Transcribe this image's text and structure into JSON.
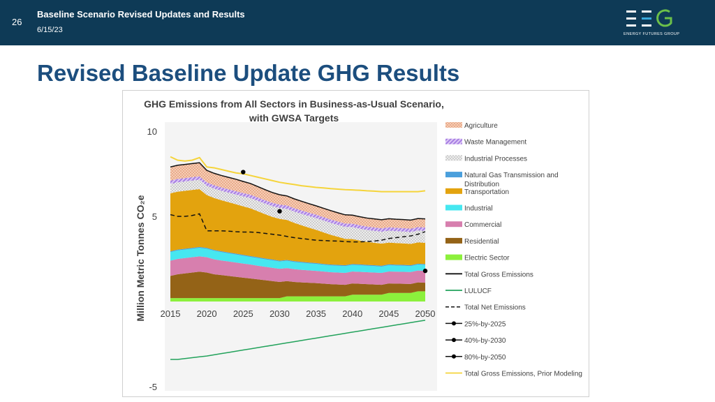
{
  "header": {
    "slide_number": "26",
    "deck_title": "Baseline Scenario Revised Updates and Results",
    "date": "6/15/23",
    "logo_tagline": "ENERGY FUTURES GROUP"
  },
  "slide": {
    "title": "Revised Baseline Update GHG Results"
  },
  "colors": {
    "header_bg": "#0e3a56",
    "title": "#1c4e7e",
    "agriculture": "#f2bfa3",
    "waste": "#c9a7ec",
    "industrial_processes": "#d6d6d6",
    "natural_gas": "#4a9fdc",
    "transportation": "#e3a30e",
    "industrial": "#46e7f0",
    "commercial": "#d77fae",
    "residential": "#946317",
    "electric": "#8cf03c",
    "lulucf": "#22a25b",
    "prior": "#f5d43a"
  },
  "chart_data": {
    "type": "area",
    "title": "GHG Emissions from All Sectors in Business-as-Usual Scenario,",
    "subtitle": "with GWSA Targets",
    "ylabel": "Million Metric Tonnes CO₂e",
    "xlabel": "",
    "xlim": [
      2015,
      2050
    ],
    "ylim": [
      -5,
      10
    ],
    "x_ticks": [
      "2015",
      "2020",
      "2025",
      "2030",
      "2035",
      "2040",
      "2045",
      "2050"
    ],
    "y_ticks": [
      "10",
      "5",
      "-5"
    ],
    "legend_position": "right",
    "x": [
      2015,
      2016,
      2017,
      2018,
      2019,
      2020,
      2021,
      2022,
      2023,
      2024,
      2025,
      2026,
      2027,
      2028,
      2029,
      2030,
      2031,
      2032,
      2033,
      2034,
      2035,
      2036,
      2037,
      2038,
      2039,
      2040,
      2041,
      2042,
      2043,
      2044,
      2045,
      2046,
      2047,
      2048,
      2049,
      2050
    ],
    "stacked_series": [
      {
        "name": "Electric Sector",
        "key": "electric",
        "values": [
          0.2,
          0.2,
          0.2,
          0.2,
          0.2,
          0.2,
          0.2,
          0.2,
          0.2,
          0.2,
          0.2,
          0.2,
          0.2,
          0.2,
          0.2,
          0.2,
          0.3,
          0.3,
          0.3,
          0.3,
          0.3,
          0.3,
          0.3,
          0.3,
          0.3,
          0.4,
          0.4,
          0.4,
          0.4,
          0.4,
          0.5,
          0.5,
          0.5,
          0.5,
          0.6,
          0.6
        ]
      },
      {
        "name": "Residential",
        "key": "residential",
        "values": [
          1.3,
          1.4,
          1.45,
          1.5,
          1.55,
          1.5,
          1.4,
          1.35,
          1.3,
          1.25,
          1.2,
          1.15,
          1.1,
          1.05,
          1.0,
          0.95,
          0.9,
          0.85,
          0.82,
          0.8,
          0.78,
          0.75,
          0.72,
          0.7,
          0.68,
          0.66,
          0.64,
          0.62,
          0.6,
          0.58,
          0.56,
          0.55,
          0.54,
          0.53,
          0.52,
          0.5
        ]
      },
      {
        "name": "Commercial",
        "key": "commercial",
        "values": [
          0.9,
          0.9,
          0.9,
          0.9,
          0.9,
          0.9,
          0.88,
          0.86,
          0.85,
          0.84,
          0.83,
          0.82,
          0.8,
          0.79,
          0.78,
          0.77,
          0.76,
          0.75,
          0.74,
          0.73,
          0.72,
          0.71,
          0.7,
          0.7,
          0.7,
          0.7,
          0.7,
          0.7,
          0.7,
          0.7,
          0.7,
          0.7,
          0.7,
          0.7,
          0.7,
          0.7
        ]
      },
      {
        "name": "Industrial",
        "key": "industrial",
        "values": [
          0.5,
          0.5,
          0.5,
          0.5,
          0.5,
          0.5,
          0.5,
          0.49,
          0.48,
          0.47,
          0.46,
          0.45,
          0.45,
          0.44,
          0.44,
          0.43,
          0.43,
          0.42,
          0.42,
          0.41,
          0.41,
          0.4,
          0.4,
          0.4,
          0.4,
          0.39,
          0.39,
          0.38,
          0.38,
          0.37,
          0.37,
          0.36,
          0.36,
          0.35,
          0.35,
          0.35
        ]
      },
      {
        "name": "Natural Gas Transmission and Distribution",
        "key": "natural_gas",
        "values": [
          0.05,
          0.05,
          0.05,
          0.05,
          0.05,
          0.05,
          0.05,
          0.05,
          0.05,
          0.05,
          0.05,
          0.05,
          0.05,
          0.05,
          0.05,
          0.05,
          0.05,
          0.05,
          0.05,
          0.05,
          0.05,
          0.05,
          0.05,
          0.05,
          0.05,
          0.05,
          0.05,
          0.05,
          0.05,
          0.05,
          0.05,
          0.05,
          0.05,
          0.05,
          0.05,
          0.05
        ]
      },
      {
        "name": "Transportation",
        "key": "transportation",
        "values": [
          3.4,
          3.4,
          3.4,
          3.4,
          3.4,
          3.1,
          3.05,
          3.0,
          2.95,
          2.9,
          2.85,
          2.8,
          2.7,
          2.6,
          2.5,
          2.45,
          2.35,
          2.25,
          2.15,
          2.05,
          1.95,
          1.85,
          1.75,
          1.65,
          1.55,
          1.47,
          1.4,
          1.35,
          1.32,
          1.3,
          1.28,
          1.27,
          1.26,
          1.25,
          1.25,
          1.25
        ]
      },
      {
        "name": "Industrial Processes",
        "key": "industrial_processes",
        "values": [
          0.55,
          0.55,
          0.55,
          0.55,
          0.55,
          0.55,
          0.55,
          0.55,
          0.56,
          0.57,
          0.58,
          0.6,
          0.61,
          0.62,
          0.63,
          0.64,
          0.65,
          0.66,
          0.67,
          0.68,
          0.69,
          0.7,
          0.7,
          0.7,
          0.7,
          0.7,
          0.7,
          0.7,
          0.7,
          0.7,
          0.7,
          0.7,
          0.7,
          0.7,
          0.7,
          0.7
        ]
      },
      {
        "name": "Waste Management",
        "key": "waste",
        "values": [
          0.2,
          0.2,
          0.2,
          0.2,
          0.2,
          0.2,
          0.2,
          0.2,
          0.2,
          0.2,
          0.2,
          0.2,
          0.2,
          0.2,
          0.2,
          0.2,
          0.2,
          0.2,
          0.2,
          0.2,
          0.2,
          0.2,
          0.2,
          0.2,
          0.2,
          0.2,
          0.2,
          0.2,
          0.2,
          0.2,
          0.2,
          0.2,
          0.2,
          0.2,
          0.2,
          0.2
        ]
      },
      {
        "name": "Agriculture",
        "key": "agriculture",
        "values": [
          0.8,
          0.8,
          0.8,
          0.8,
          0.8,
          0.7,
          0.7,
          0.7,
          0.7,
          0.7,
          0.68,
          0.66,
          0.64,
          0.62,
          0.6,
          0.58,
          0.56,
          0.55,
          0.54,
          0.53,
          0.52,
          0.52,
          0.52,
          0.51,
          0.51,
          0.5,
          0.5,
          0.5,
          0.5,
          0.5,
          0.5,
          0.5,
          0.5,
          0.5,
          0.5,
          0.5
        ]
      }
    ],
    "line_series": [
      {
        "name": "LULUCF",
        "key": "lulucf",
        "dash": false,
        "values": [
          -3.4,
          -3.4,
          -3.35,
          -3.3,
          -3.25,
          -3.2,
          -3.13,
          -3.06,
          -2.99,
          -2.92,
          -2.85,
          -2.78,
          -2.71,
          -2.64,
          -2.57,
          -2.5,
          -2.43,
          -2.36,
          -2.29,
          -2.22,
          -2.15,
          -2.08,
          -2.01,
          -1.94,
          -1.87,
          -1.8,
          -1.73,
          -1.66,
          -1.59,
          -1.52,
          -1.45,
          -1.38,
          -1.31,
          -1.24,
          -1.17,
          -1.1
        ]
      },
      {
        "name": "Total Net Emissions",
        "key": "net",
        "dash": true,
        "values": [
          5.1,
          5.0,
          5.0,
          5.05,
          5.15,
          4.15,
          4.15,
          4.15,
          4.13,
          4.1,
          4.08,
          4.08,
          4.05,
          4.0,
          3.95,
          3.9,
          3.82,
          3.75,
          3.7,
          3.65,
          3.6,
          3.58,
          3.56,
          3.55,
          3.52,
          3.5,
          3.5,
          3.52,
          3.55,
          3.6,
          3.7,
          3.75,
          3.8,
          3.85,
          3.95,
          4.1
        ]
      },
      {
        "name": "Total Gross Emissions, Prior Modeling",
        "key": "prior",
        "dash": false,
        "values": [
          8.5,
          8.3,
          8.25,
          8.3,
          8.45,
          7.9,
          7.85,
          7.75,
          7.65,
          7.55,
          7.5,
          7.4,
          7.3,
          7.2,
          7.1,
          7.0,
          6.93,
          6.87,
          6.8,
          6.75,
          6.7,
          6.67,
          6.63,
          6.6,
          6.57,
          6.55,
          6.53,
          6.5,
          6.48,
          6.45,
          6.45,
          6.45,
          6.45,
          6.45,
          6.45,
          6.5
        ]
      }
    ],
    "targets": [
      {
        "name": "25%-by-2025",
        "x": 2025,
        "y": 7.6
      },
      {
        "name": "40%-by-2030",
        "x": 2030,
        "y": 5.3
      },
      {
        "name": "80%-by-2050",
        "x": 2050,
        "y": 1.8
      }
    ],
    "legend": [
      {
        "label": "Agriculture",
        "kind": "patch",
        "key": "agriculture",
        "hatch": "dots"
      },
      {
        "label": "Waste Management",
        "kind": "patch",
        "key": "waste",
        "hatch": "stripes"
      },
      {
        "label": "Industrial Processes",
        "kind": "patch",
        "key": "industrial_processes",
        "hatch": "dots"
      },
      {
        "label": "Natural Gas Transmission and",
        "label2": "Distribution",
        "kind": "patch",
        "key": "natural_gas"
      },
      {
        "label": "Transportation",
        "kind": "patch",
        "key": "transportation"
      },
      {
        "label": "Industrial",
        "kind": "patch",
        "key": "industrial"
      },
      {
        "label": "Commercial",
        "kind": "patch",
        "key": "commercial"
      },
      {
        "label": "Residential",
        "kind": "patch",
        "key": "residential"
      },
      {
        "label": "Electric Sector",
        "kind": "patch",
        "key": "electric"
      },
      {
        "label": "Total Gross Emissions",
        "kind": "line",
        "key": "gross"
      },
      {
        "label": "LULUCF",
        "kind": "line",
        "key": "lulucf"
      },
      {
        "label": "Total Net Emissions",
        "kind": "dash",
        "key": "net"
      },
      {
        "label": "25%-by-2025",
        "kind": "marker",
        "key": "target"
      },
      {
        "label": "40%-by-2030",
        "kind": "marker",
        "key": "target"
      },
      {
        "label": "80%-by-2050",
        "kind": "marker",
        "key": "target"
      },
      {
        "label": "Total Gross Emissions, Prior Modeling",
        "kind": "line",
        "key": "prior"
      }
    ]
  }
}
